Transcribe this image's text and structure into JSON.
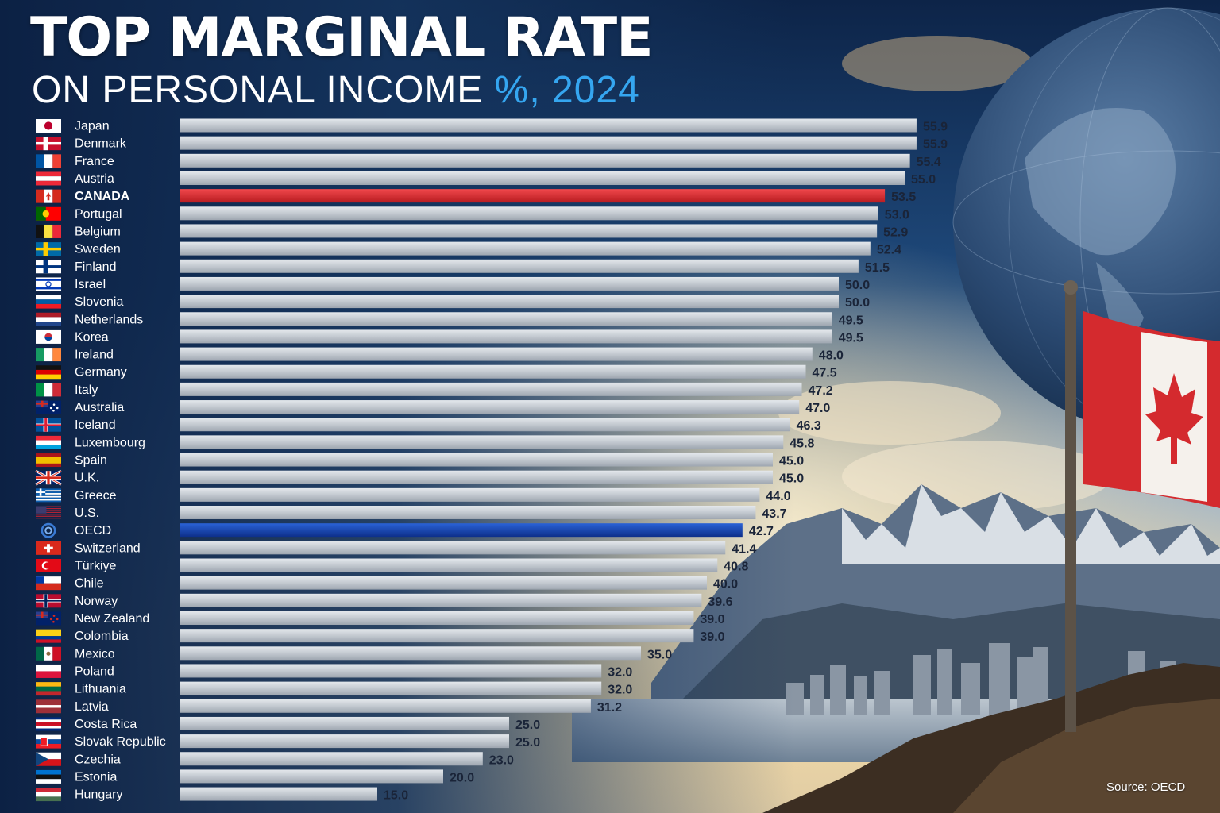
{
  "chart_data": {
    "type": "bar",
    "orientation": "horizontal",
    "title": "TOP MARGINAL RATE",
    "subtitle_main": "ON PERSONAL INCOME",
    "subtitle_accent": "%, 2024",
    "categories": [
      "Japan",
      "Denmark",
      "France",
      "Austria",
      "CANADA",
      "Portugal",
      "Belgium",
      "Sweden",
      "Finland",
      "Israel",
      "Slovenia",
      "Netherlands",
      "Korea",
      "Ireland",
      "Germany",
      "Italy",
      "Australia",
      "Iceland",
      "Luxembourg",
      "Spain",
      "U.K.",
      "Greece",
      "U.S.",
      "OECD",
      "Switzerland",
      "Türkiye",
      "Chile",
      "Norway",
      "New Zealand",
      "Colombia",
      "Mexico",
      "Poland",
      "Lithuania",
      "Latvia",
      "Costa Rica",
      "Slovak Republic",
      "Czechia",
      "Estonia",
      "Hungary"
    ],
    "value_labels": [
      "55.9",
      "55.9",
      "55.4",
      "55.0",
      "53.5",
      "53.0",
      "52.9",
      "52.4",
      "51.5",
      "50.0",
      "50.0",
      "49.5",
      "49.5",
      "48.0",
      "47.5",
      "47.2",
      "47.0",
      "46.3",
      "45.8",
      "45.0",
      "45.0",
      "44.0",
      "43.7",
      "42.7",
      "41.4",
      "40.8",
      "40.0",
      "39.6",
      "39.0",
      "39.0",
      "35.0",
      "32.0",
      "32.0",
      "31.2",
      "25.0",
      "25.0",
      "23.0",
      "20.0",
      "15.0"
    ],
    "values": [
      55.9,
      55.9,
      55.4,
      55.0,
      53.5,
      53.0,
      52.9,
      52.4,
      51.5,
      50.0,
      50.0,
      49.5,
      49.5,
      48.0,
      47.5,
      47.2,
      47.0,
      46.3,
      45.8,
      45.0,
      45.0,
      44.0,
      43.7,
      42.7,
      41.4,
      40.8,
      40.0,
      39.6,
      39.0,
      39.0,
      35.0,
      32.0,
      32.0,
      31.2,
      25.0,
      25.0,
      23.0,
      20.0,
      15.0
    ],
    "highlights": {
      "CANADA": "#d4252a",
      "OECD": "#1344b8"
    },
    "bar_color": "#c2c8d0",
    "xlim": [
      0,
      56
    ],
    "grid": false,
    "legend": "none"
  },
  "flags": [
    "japan-flag",
    "denmark-flag",
    "france-flag",
    "austria-flag",
    "canada-flag",
    "portugal-flag",
    "belgium-flag",
    "sweden-flag",
    "finland-flag",
    "israel-flag",
    "slovenia-flag",
    "netherlands-flag",
    "korea-flag",
    "ireland-flag",
    "germany-flag",
    "italy-flag",
    "australia-flag",
    "iceland-flag",
    "luxembourg-flag",
    "spain-flag",
    "uk-flag",
    "greece-flag",
    "us-flag",
    "oecd-logo",
    "switzerland-flag",
    "turkiye-flag",
    "chile-flag",
    "norway-flag",
    "new-zealand-flag",
    "colombia-flag",
    "mexico-flag",
    "poland-flag",
    "lithuania-flag",
    "latvia-flag",
    "costa-rica-flag",
    "slovak-republic-flag",
    "czechia-flag",
    "estonia-flag",
    "hungary-flag"
  ],
  "background": {
    "description_icons": [
      "globe-icon",
      "canada-flag-pole",
      "mountain-range",
      "city-skyline"
    ],
    "sky_top": "#0d2448",
    "sky_glow": "#f4d9a4"
  },
  "footer": {
    "source": "Source: OECD"
  }
}
